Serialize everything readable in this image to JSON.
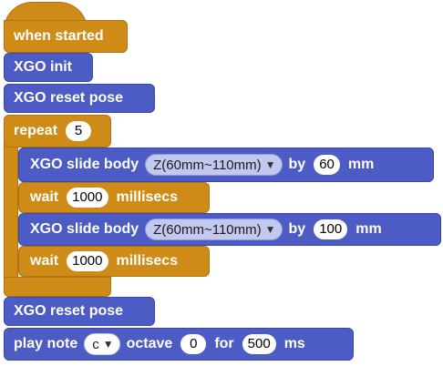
{
  "blocks": {
    "when_started": "when started",
    "xgo_init": "XGO init",
    "reset_pose_1": "XGO reset pose",
    "repeat_label": "repeat",
    "repeat_count": "5",
    "slide1": {
      "label": "XGO slide body",
      "dropdown": "Z(60mm~110mm)",
      "by": "by",
      "value": "60",
      "unit": "mm"
    },
    "wait1": {
      "label": "wait",
      "value": "1000",
      "unit": "millisecs"
    },
    "slide2": {
      "label": "XGO slide body",
      "dropdown": "Z(60mm~110mm)",
      "by": "by",
      "value": "100",
      "unit": "mm"
    },
    "wait2": {
      "label": "wait",
      "value": "1000",
      "unit": "millisecs"
    },
    "reset_pose_2": "XGO reset pose",
    "play": {
      "label": "play note",
      "note": "c",
      "octave_label": "octave",
      "octave": "0",
      "for_label": "for",
      "duration": "500",
      "unit": "ms"
    }
  },
  "colors": {
    "events": "#cf8b17",
    "xgo": "#4c5cc4",
    "control": "#cf8b17"
  }
}
